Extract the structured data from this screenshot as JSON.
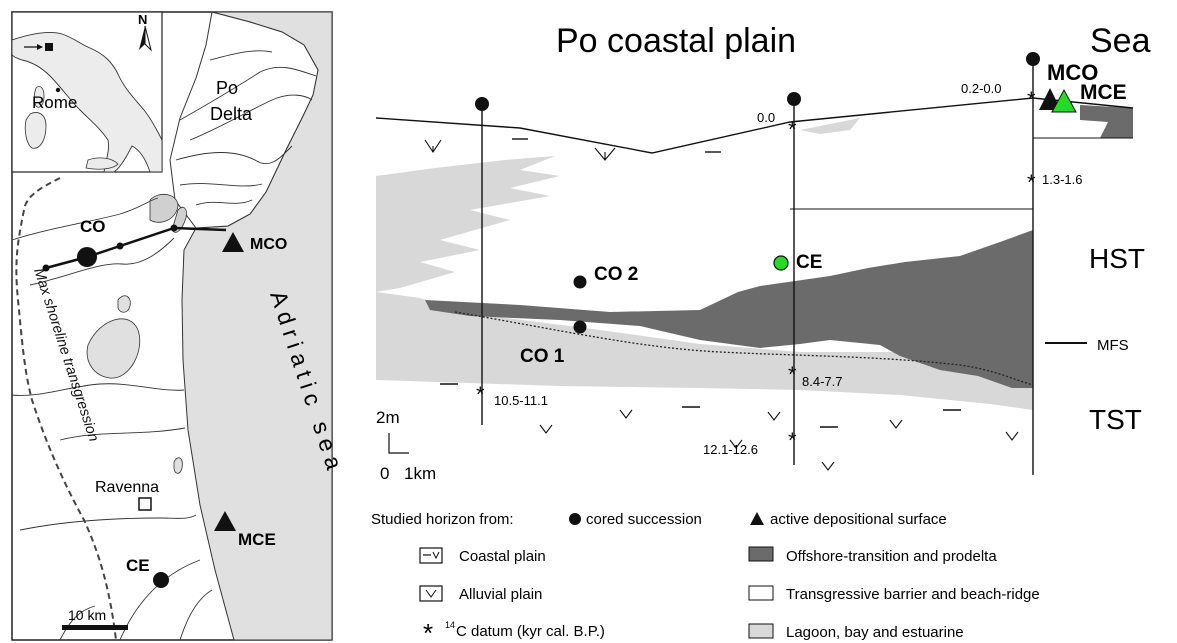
{
  "map": {
    "inset_place": "Rome",
    "north_label": "N",
    "delta_label_1": "Po",
    "delta_label_2": "Delta",
    "sea_label": "Adriatic sea",
    "shoreline_label": "Max shoreline transgression",
    "city_label": "Ravenna",
    "sites": {
      "co": "CO",
      "mco": "MCO",
      "mce": "MCE",
      "ce": "CE"
    },
    "scale_label": "10 km"
  },
  "section": {
    "title": "Po coastal plain",
    "sea_title": "Sea",
    "mco_label": "MCO",
    "mce_label": "MCE",
    "co2_label": "CO 2",
    "co1_label": "CO 1",
    "ce_label": "CE",
    "hst_label": "HST",
    "tst_label": "TST",
    "mfs_label": "MFS",
    "ages": {
      "top_sea": "0.2-0.0",
      "top_mid": "0.0",
      "sea_mid": "1.3-1.6",
      "mid_mfs": "8.4-7.7",
      "mid_base": "12.1-12.6",
      "left_base": "10.5-11.1"
    },
    "scale_v": "2m",
    "scale_h0": "0",
    "scale_h1": "1km"
  },
  "legend": {
    "studied_prefix": "Studied horizon from:",
    "cored": "cored succession",
    "active": "active depositional surface",
    "coastal_plain": "Coastal plain",
    "alluvial_plain": "Alluvial plain",
    "c14_sup": "14",
    "c14": "C datum (kyr cal. B.P.)",
    "offshore": "Offshore-transition and prodelta",
    "barrier": "Transgressive barrier and beach-ridge",
    "lagoon": "Lagoon, bay and estuarine"
  },
  "colors": {
    "land": "#ffffff",
    "sea": "#e0e0e0",
    "lagoon": "#d8d8d8",
    "offshore": "#6b6b6b",
    "highlight_green": "#22dd22"
  }
}
